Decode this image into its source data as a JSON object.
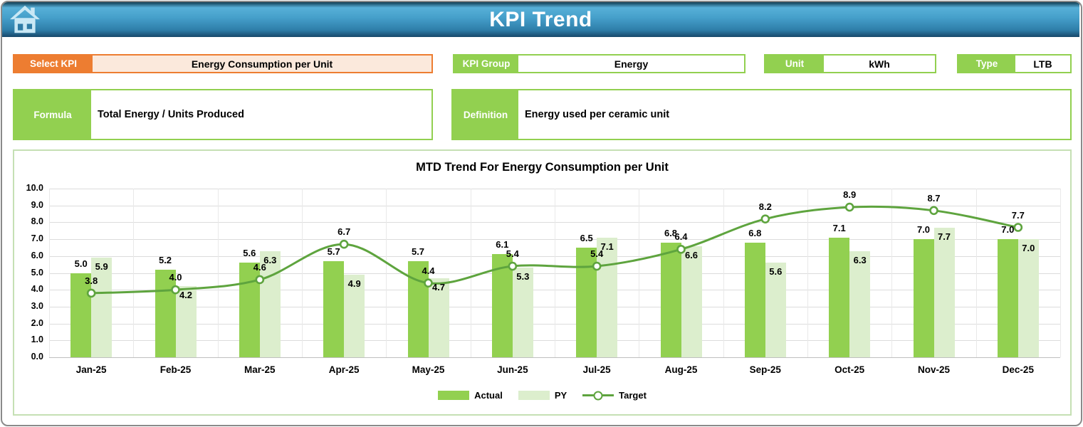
{
  "header": {
    "title": "KPI Trend"
  },
  "fields": {
    "select_kpi": {
      "label": "Select KPI",
      "value": "Energy Consumption per Unit"
    },
    "kpi_group": {
      "label": "KPI Group",
      "value": "Energy"
    },
    "unit": {
      "label": "Unit",
      "value": "kWh"
    },
    "type": {
      "label": "Type",
      "value": "LTB"
    },
    "formula": {
      "label": "Formula",
      "value": "Total Energy / Units Produced"
    },
    "definition": {
      "label": "Definition",
      "value": "Energy used per ceramic unit"
    }
  },
  "chart_data": {
    "type": "bar",
    "title": "MTD Trend For Energy Consumption per Unit",
    "categories": [
      "Jan-25",
      "Feb-25",
      "Mar-25",
      "Apr-25",
      "May-25",
      "Jun-25",
      "Jul-25",
      "Aug-25",
      "Sep-25",
      "Oct-25",
      "Nov-25",
      "Dec-25"
    ],
    "series": [
      {
        "name": "Actual",
        "type": "bar",
        "color": "#92D050",
        "values": [
          5.0,
          5.2,
          5.6,
          5.7,
          5.7,
          6.1,
          6.5,
          6.8,
          6.8,
          7.1,
          7.0,
          7.0
        ]
      },
      {
        "name": "PY",
        "type": "bar",
        "color": "#DCEECD",
        "values": [
          5.9,
          4.2,
          6.3,
          4.9,
          4.7,
          5.3,
          7.1,
          6.6,
          5.6,
          6.3,
          7.7,
          7.0
        ]
      },
      {
        "name": "Target",
        "type": "line",
        "color": "#5EA43E",
        "values": [
          3.8,
          4.0,
          4.6,
          6.7,
          4.4,
          5.4,
          5.4,
          6.4,
          8.2,
          8.9,
          8.7,
          7.7
        ]
      }
    ],
    "xlabel": "",
    "ylabel": "",
    "ylim": [
      0,
      10
    ],
    "ytick_step": 1.0,
    "grid": true,
    "data_labels": true,
    "label_format": "0.0",
    "legend_position": "bottom",
    "line_smooth": true
  },
  "colors": {
    "header_blue_light": "#55AFD8",
    "header_blue_dark": "#1D5B7E",
    "accent_orange": "#ED7D31",
    "orange_fill": "#FBE9DC",
    "accent_green": "#92D050",
    "panel_border_green": "#C5E0B4",
    "py_bar_green": "#DCEECD",
    "target_line_green": "#5EA43E",
    "gridline_gray": "#DCDCDC"
  }
}
